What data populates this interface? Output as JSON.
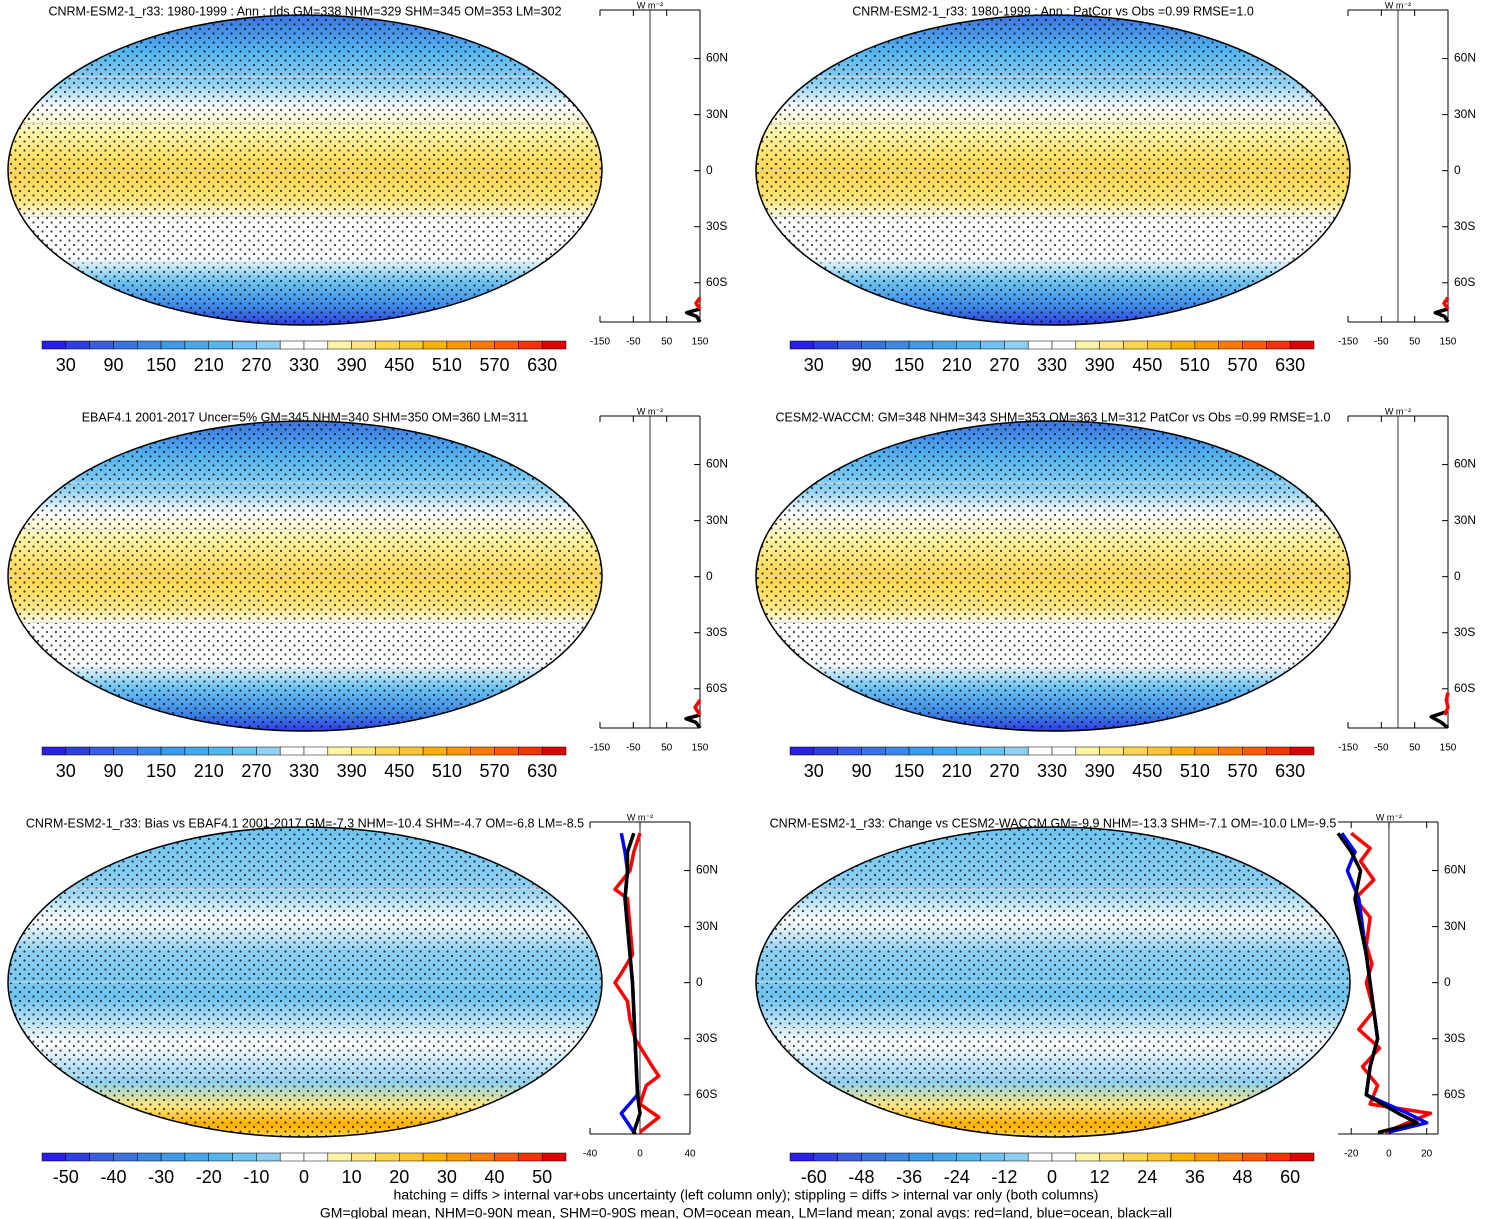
{
  "panels": [
    {
      "title": "CNRM-ESM2-1_r33: 1980-1999 : Ann : rlds GM=338 NHM=329 SHM=345 OM=353 LM=302",
      "colorbar_ticks": [
        30,
        90,
        150,
        210,
        270,
        330,
        390,
        450,
        510,
        570,
        630
      ],
      "profile": {
        "xlim": [
          -150,
          150
        ],
        "xticks": [
          -150,
          -50,
          50,
          150
        ],
        "series": [
          {
            "color": "#000000",
            "lat": [
              -81,
              -78,
              -76,
              -74
            ],
            "values": [
              150,
              140,
              110,
              150
            ]
          },
          {
            "color": "#ff0000",
            "lat": [
              -74,
              -71,
              -68
            ],
            "values": [
              150,
              138,
              150
            ]
          }
        ]
      }
    },
    {
      "title": "CNRM-ESM2-1_r33: 1980-1999 : Ann : PatCor vs Obs =0.99 RMSE=1.0",
      "colorbar_ticks": [
        30,
        90,
        150,
        210,
        270,
        330,
        390,
        450,
        510,
        570,
        630
      ],
      "profile": {
        "xlim": [
          -150,
          150
        ],
        "xticks": [
          -150,
          -50,
          50,
          150
        ],
        "series": [
          {
            "color": "#000000",
            "lat": [
              -81,
              -78,
              -76,
              -74
            ],
            "values": [
              150,
              140,
              112,
              150
            ]
          },
          {
            "color": "#ff0000",
            "lat": [
              -74,
              -71,
              -68
            ],
            "values": [
              150,
              138,
              150
            ]
          }
        ]
      }
    },
    {
      "title": "EBAF4.1 2001-2017 Uncer=5% GM=345 NHM=340 SHM=350 OM=360 LM=311",
      "colorbar_ticks": [
        30,
        90,
        150,
        210,
        270,
        330,
        390,
        450,
        510,
        570,
        630
      ],
      "profile": {
        "xlim": [
          -150,
          150
        ],
        "xticks": [
          -150,
          -50,
          50,
          150
        ],
        "series": [
          {
            "color": "#000000",
            "lat": [
              -81,
              -78,
              -76,
              -74
            ],
            "values": [
              150,
              138,
              108,
              150
            ]
          },
          {
            "color": "#ff0000",
            "lat": [
              -74,
              -70,
              -66
            ],
            "values": [
              150,
              135,
              150
            ]
          }
        ]
      }
    },
    {
      "title": "CESM2-WACCM: GM=348 NHM=343 SHM=353 OM=363 LM=312 PatCor vs Obs =0.99 RMSE=1.0",
      "colorbar_ticks": [
        30,
        90,
        150,
        210,
        270,
        330,
        390,
        450,
        510,
        570,
        630
      ],
      "profile": {
        "xlim": [
          -150,
          150
        ],
        "xticks": [
          -150,
          -50,
          50,
          150
        ],
        "series": [
          {
            "color": "#000000",
            "lat": [
              -81,
              -78,
              -75,
              -72
            ],
            "values": [
              150,
              130,
              100,
              150
            ]
          },
          {
            "color": "#ff0000",
            "lat": [
              -74,
              -70,
              -66,
              -62
            ],
            "values": [
              140,
              150,
              145,
              150
            ]
          }
        ]
      }
    },
    {
      "title": "CNRM-ESM2-1_r33: Bias vs EBAF4.1 2001-2017 GM=-7.3 NHM=-10.4 SHM=-4.7 OM=-6.8 LM=-8.5",
      "colorbar_ticks": [
        -50,
        -40,
        -30,
        -20,
        -10,
        0,
        10,
        20,
        30,
        40,
        50
      ],
      "profile": {
        "xlim": [
          -40,
          40
        ],
        "xticks": [
          -40,
          0,
          40
        ],
        "series": [
          {
            "color": "#ff0000",
            "lat": [
              80,
              70,
              60,
              50,
              45,
              30,
              15,
              5,
              0,
              -10,
              -20,
              -30,
              -45,
              -50,
              -55,
              -65,
              -72,
              -80
            ],
            "values": [
              0,
              -5,
              -8,
              -20,
              -10,
              -8,
              -6,
              -15,
              -20,
              -10,
              -8,
              -4,
              10,
              15,
              5,
              0,
              15,
              0
            ]
          },
          {
            "color": "#0000ff",
            "lat": [
              80,
              70,
              60,
              45,
              30,
              15,
              0,
              -15,
              -30,
              -45,
              -60,
              -70,
              -80
            ],
            "values": [
              -15,
              -12,
              -10,
              -12,
              -10,
              -8,
              -6,
              -5,
              -4,
              -3,
              -2,
              -15,
              -5
            ]
          },
          {
            "color": "#000000",
            "lat": [
              80,
              70,
              60,
              45,
              30,
              15,
              0,
              -15,
              -30,
              -45,
              -60,
              -70,
              -80,
              -85
            ],
            "values": [
              -5,
              -10,
              -10,
              -12,
              -10,
              -8,
              -6,
              -5,
              -4,
              -3,
              -2,
              0,
              -5,
              0
            ]
          }
        ]
      }
    },
    {
      "title": "CNRM-ESM2-1_r33: Change vs CESM2-WACCM GM=-9.9 NHM=-13.3 SHM=-7.1 OM=-10.0 LM=-9.5",
      "colorbar_ticks": [
        -60,
        -48,
        -36,
        -24,
        -12,
        0,
        12,
        24,
        36,
        48,
        60
      ],
      "profile": {
        "xlim": [
          -27,
          26
        ],
        "xticks": [
          -20,
          0,
          20
        ],
        "series": [
          {
            "color": "#ff0000",
            "lat": [
              80,
              72,
              65,
              55,
              45,
              35,
              20,
              10,
              0,
              -15,
              -25,
              -35,
              -45,
              -55,
              -65,
              -70,
              -75,
              -80
            ],
            "values": [
              -20,
              -10,
              -15,
              -8,
              -18,
              -10,
              -12,
              -9,
              -12,
              -8,
              -16,
              -5,
              -14,
              -6,
              -10,
              22,
              10,
              -2
            ]
          },
          {
            "color": "#0000ff",
            "lat": [
              80,
              70,
              60,
              45,
              30,
              15,
              0,
              -15,
              -30,
              -45,
              -60,
              -70,
              -75,
              -80
            ],
            "values": [
              -25,
              -18,
              -22,
              -16,
              -14,
              -12,
              -10,
              -8,
              -6,
              -10,
              -12,
              10,
              20,
              0
            ]
          },
          {
            "color": "#000000",
            "lat": [
              80,
              70,
              60,
              45,
              30,
              15,
              0,
              -15,
              -30,
              -45,
              -60,
              -70,
              -75,
              -80,
              -85
            ],
            "values": [
              -27,
              -20,
              -15,
              -18,
              -15,
              -12,
              -10,
              -8,
              -6,
              -10,
              -12,
              5,
              15,
              -5,
              0
            ]
          }
        ]
      }
    }
  ],
  "profile_axis": {
    "unit": "W m⁻²",
    "ylim": [
      -81,
      86
    ],
    "yticks": [
      {
        "value": 60,
        "label": "60N"
      },
      {
        "value": 30,
        "label": "30N"
      },
      0,
      {
        "value": -30,
        "label": "30S"
      },
      {
        "value": -60,
        "label": "60S"
      }
    ]
  },
  "palette": [
    "#2b1ee6",
    "#2f3ee0",
    "#3a5ce0",
    "#3b73e0",
    "#3d88e6",
    "#3e9ae8",
    "#47a8ec",
    "#55b6ef",
    "#6ec3f0",
    "#8fd0f2",
    "#ffffff",
    "#ffffff",
    "#fff5a8",
    "#ffe680",
    "#ffd54f",
    "#ffc532",
    "#ffb000",
    "#ff9800",
    "#ff7b00",
    "#ff5a00",
    "#f43200",
    "#dd0000"
  ],
  "footer": [
    "hatching = diffs > internal var+obs uncertainty (left column only); stippling = diffs > internal var only (both columns)",
    "GM=global mean, NHM=0-90N mean, SHM=0-90S mean, OM=ocean mean, LM=land mean; zonal avgs: red=land, blue=ocean, black=all"
  ]
}
